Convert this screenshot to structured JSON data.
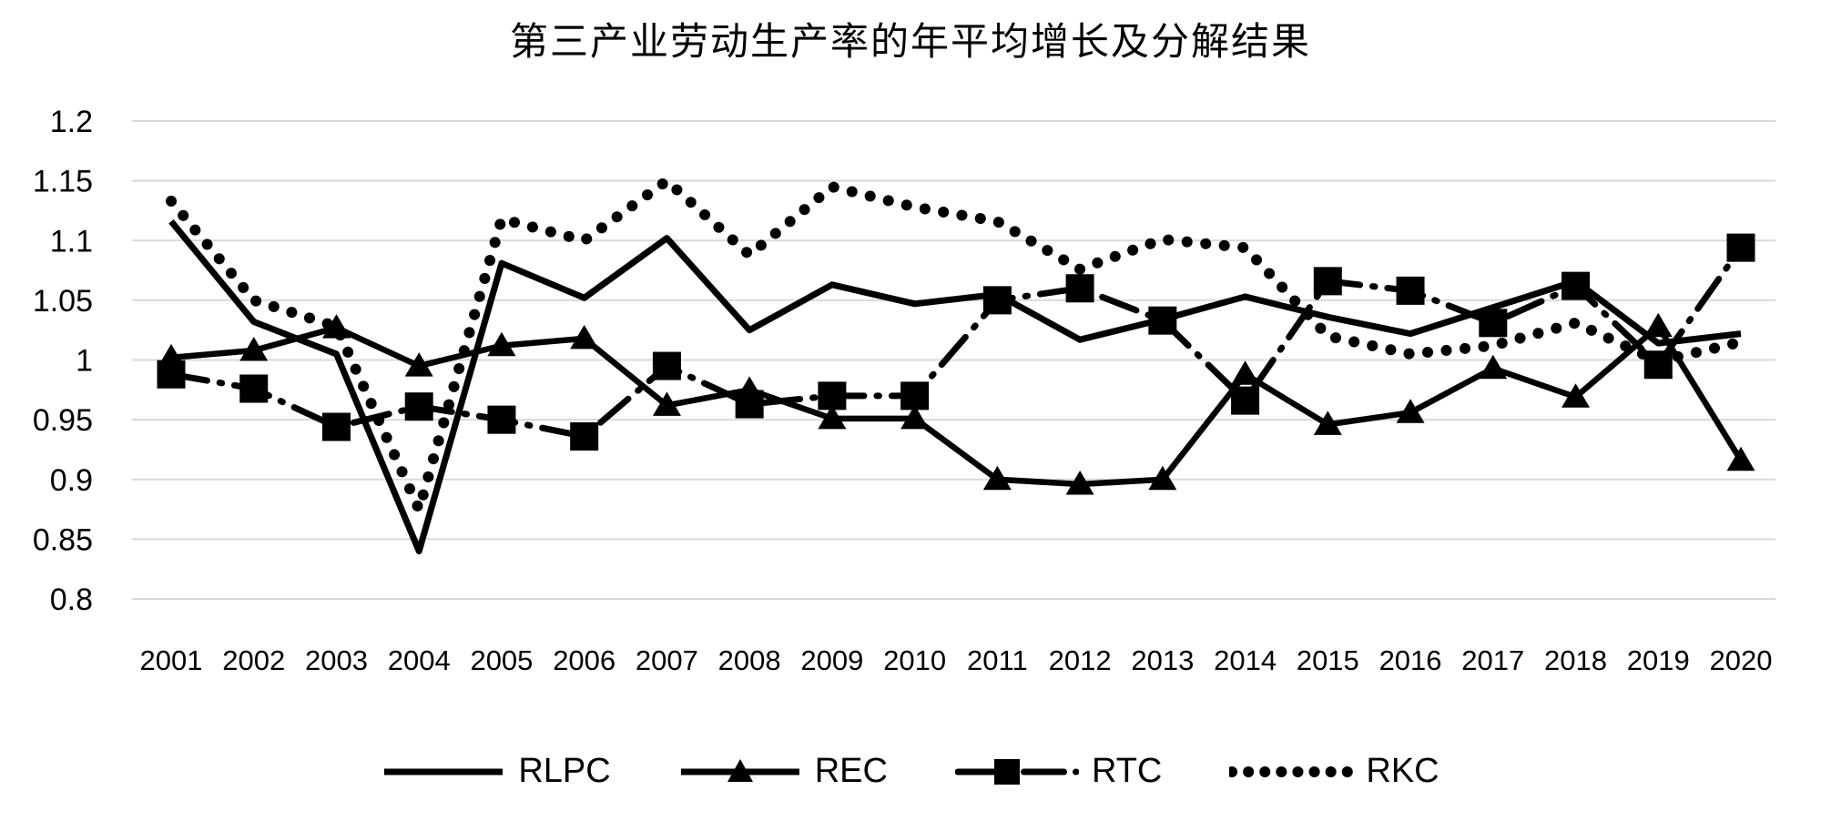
{
  "page": {
    "background": "#ffffff"
  },
  "chart_data": {
    "type": "line",
    "title": "第三产业劳动生产率的年平均增长及分解结果",
    "x_labels": [
      "2001",
      "2002",
      "2003",
      "2004",
      "2005",
      "2006",
      "2007",
      "2008",
      "2009",
      "2010",
      "2011",
      "2012",
      "2013",
      "2014",
      "2015",
      "2016",
      "2017",
      "2018",
      "2019",
      "2020"
    ],
    "y_tick_labels": [
      "1.2",
      "1.15",
      "1.1",
      "1.05",
      "1",
      "0.95",
      "0.9",
      "0.85",
      "0.8"
    ],
    "ylim": [
      0.8,
      1.2
    ],
    "grid": "horizontal-only",
    "legend_position": "bottom-center",
    "line_color": "#000000",
    "grid_color": "#d9d9d9",
    "series": [
      {
        "name": "RLPC",
        "line_style": "solid",
        "marker": "none",
        "values": [
          1.116,
          1.032,
          1.005,
          0.84,
          1.081,
          1.052,
          1.102,
          1.025,
          1.063,
          1.047,
          1.055,
          1.017,
          1.034,
          1.053,
          1.036,
          1.022,
          1.044,
          1.066,
          1.014,
          1.022
        ]
      },
      {
        "name": "REC",
        "line_style": "solid",
        "marker": "triangle",
        "values": [
          1.002,
          1.008,
          1.027,
          0.995,
          1.012,
          1.018,
          0.962,
          0.975,
          0.951,
          0.951,
          0.9,
          0.896,
          0.9,
          0.988,
          0.946,
          0.956,
          0.993,
          0.969,
          1.028,
          0.916
        ]
      },
      {
        "name": "RTC",
        "line_style": "dash-dot",
        "marker": "square",
        "values": [
          0.988,
          0.976,
          0.944,
          0.961,
          0.95,
          0.936,
          0.995,
          0.963,
          0.97,
          0.97,
          1.05,
          1.06,
          1.033,
          0.966,
          1.066,
          1.058,
          1.031,
          1.062,
          0.996,
          1.094
        ]
      },
      {
        "name": "RKC",
        "line_style": "dotted",
        "marker": "none",
        "values": [
          1.133,
          1.05,
          1.028,
          0.875,
          1.118,
          1.1,
          1.15,
          1.088,
          1.145,
          1.128,
          1.116,
          1.076,
          1.101,
          1.094,
          1.02,
          1.005,
          1.012,
          1.031,
          0.999,
          1.015
        ]
      }
    ]
  }
}
